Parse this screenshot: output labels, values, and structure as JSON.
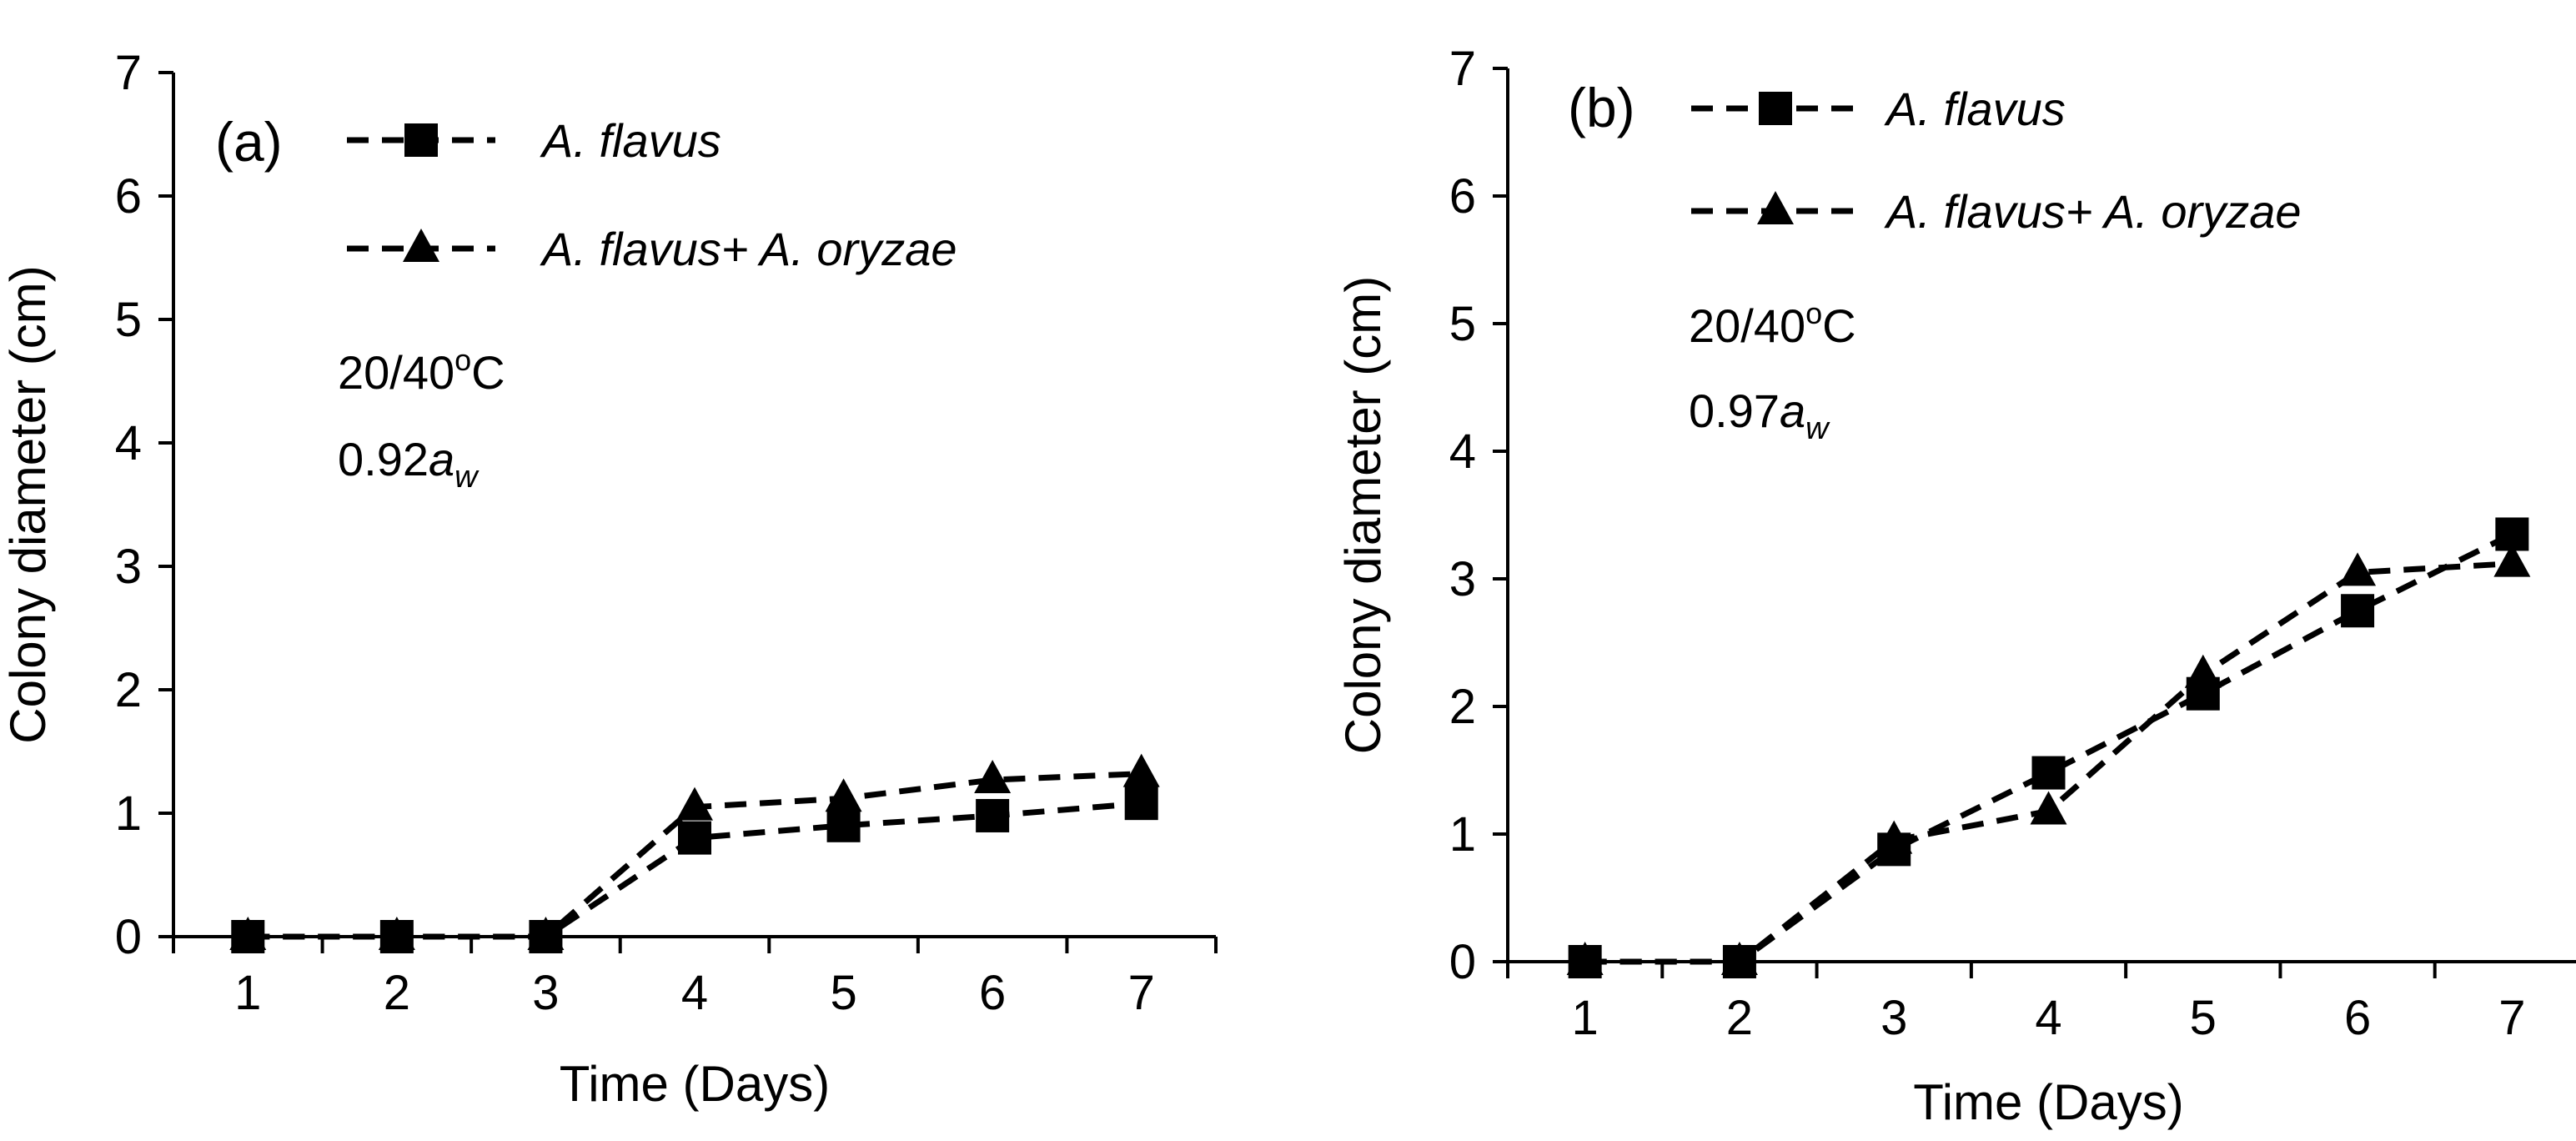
{
  "chart_data": [
    {
      "type": "line",
      "panel_label": "(a)",
      "condition": {
        "temperature_main": "20/40",
        "temperature_sup": "o",
        "temperature_unit": "C",
        "aw_value": "0.92",
        "aw_symbol": "a",
        "aw_sub": "w"
      },
      "xlabel": "Time (Days)",
      "ylabel": "Colony diameter (cm)",
      "categories": [
        "1",
        "2",
        "3",
        "4",
        "5",
        "6",
        "7"
      ],
      "ylim": [
        0,
        7
      ],
      "yticks": [
        "0",
        "1",
        "2",
        "3",
        "4",
        "5",
        "6",
        "7"
      ],
      "legend_position": "top-left",
      "series": [
        {
          "name": "A. flavus",
          "marker": "square",
          "values": [
            0,
            0,
            0,
            0.8,
            0.9,
            0.98,
            1.08
          ]
        },
        {
          "name": "A. flavus+ A. oryzae",
          "marker": "triangle",
          "values": [
            0,
            0,
            0,
            1.05,
            1.12,
            1.27,
            1.32
          ]
        }
      ]
    },
    {
      "type": "line",
      "panel_label": "(b)",
      "condition": {
        "temperature_main": "20/40",
        "temperature_sup": "o",
        "temperature_unit": "C",
        "aw_value": "0.97",
        "aw_symbol": "a",
        "aw_sub": "w"
      },
      "xlabel": "Time (Days)",
      "ylabel": "Colony diameter (cm)",
      "categories": [
        "1",
        "2",
        "3",
        "4",
        "5",
        "6",
        "7"
      ],
      "ylim": [
        0,
        7
      ],
      "yticks": [
        "0",
        "1",
        "2",
        "3",
        "4",
        "5",
        "6",
        "7"
      ],
      "legend_position": "top-left",
      "series": [
        {
          "name": "A. flavus",
          "marker": "square",
          "values": [
            0,
            0,
            0.88,
            1.48,
            2.1,
            2.75,
            3.35
          ]
        },
        {
          "name": "A. flavus+ A. oryzae",
          "marker": "triangle",
          "values": [
            0,
            0,
            0.95,
            1.18,
            2.25,
            3.05,
            3.12
          ]
        }
      ]
    }
  ]
}
